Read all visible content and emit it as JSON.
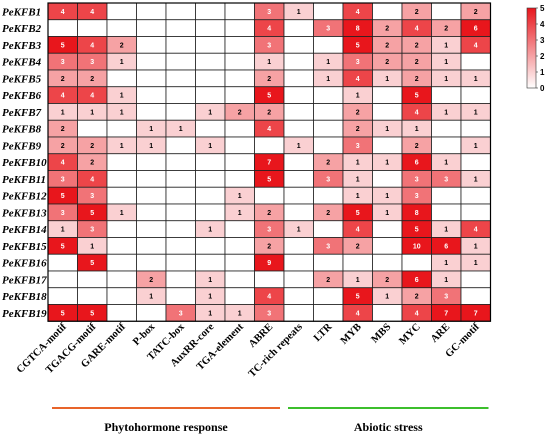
{
  "chart_data": {
    "type": "heatmap",
    "rows": [
      "PeKFB1",
      "PeKFB2",
      "PeKFB3",
      "PeKFB4",
      "PeKFB5",
      "PeKFB6",
      "PeKFB7",
      "PeKFB8",
      "PeKFB9",
      "PeKFB10",
      "PeKFB11",
      "PeKFB12",
      "PeKFB13",
      "PeKFB14",
      "PeKFB15",
      "PeKFB16",
      "PeKFB17",
      "PeKFB18",
      "PeKFB19"
    ],
    "columns": [
      "CGTCA-motif",
      "TGACG-motif",
      "GARE-motif",
      "P-box",
      "TATC-box",
      "AuxRR-core",
      "TGA-element",
      "ABRE",
      "TC-rich repeats",
      "LTR",
      "MYB",
      "MBS",
      "MYC",
      "ARE",
      "GC-motif"
    ],
    "values": [
      [
        4,
        4,
        null,
        null,
        null,
        null,
        null,
        3,
        1,
        null,
        4,
        null,
        2,
        null,
        2
      ],
      [
        null,
        null,
        null,
        null,
        null,
        null,
        null,
        4,
        null,
        3,
        8,
        2,
        4,
        2,
        6
      ],
      [
        5,
        4,
        2,
        null,
        null,
        null,
        null,
        3,
        null,
        null,
        5,
        2,
        2,
        1,
        4
      ],
      [
        3,
        3,
        1,
        null,
        null,
        null,
        null,
        1,
        null,
        1,
        3,
        2,
        2,
        1,
        null
      ],
      [
        2,
        2,
        null,
        null,
        null,
        null,
        null,
        2,
        null,
        1,
        4,
        1,
        2,
        1,
        1
      ],
      [
        4,
        4,
        1,
        null,
        null,
        null,
        null,
        5,
        null,
        null,
        1,
        null,
        5,
        null,
        null
      ],
      [
        1,
        1,
        1,
        null,
        null,
        1,
        2,
        2,
        null,
        null,
        2,
        null,
        4,
        1,
        1
      ],
      [
        2,
        null,
        null,
        1,
        1,
        null,
        null,
        4,
        null,
        null,
        2,
        1,
        1,
        null,
        null
      ],
      [
        2,
        2,
        1,
        1,
        null,
        1,
        null,
        null,
        1,
        null,
        3,
        null,
        2,
        null,
        1
      ],
      [
        4,
        2,
        null,
        null,
        null,
        null,
        null,
        7,
        null,
        2,
        1,
        1,
        6,
        1,
        null
      ],
      [
        3,
        4,
        null,
        null,
        null,
        null,
        null,
        5,
        null,
        3,
        1,
        null,
        3,
        3,
        1
      ],
      [
        5,
        3,
        null,
        null,
        null,
        null,
        1,
        null,
        null,
        null,
        1,
        1,
        3,
        null,
        null
      ],
      [
        3,
        5,
        1,
        null,
        null,
        null,
        1,
        2,
        null,
        2,
        5,
        1,
        8,
        null,
        null
      ],
      [
        1,
        3,
        null,
        null,
        null,
        1,
        null,
        3,
        1,
        null,
        4,
        null,
        5,
        1,
        4
      ],
      [
        5,
        1,
        null,
        null,
        null,
        null,
        null,
        2,
        null,
        3,
        2,
        null,
        10,
        6,
        1
      ],
      [
        null,
        5,
        null,
        null,
        null,
        null,
        null,
        9,
        null,
        null,
        null,
        null,
        null,
        1,
        1
      ],
      [
        null,
        null,
        null,
        2,
        null,
        1,
        null,
        null,
        null,
        2,
        1,
        2,
        6,
        1,
        null
      ],
      [
        null,
        null,
        null,
        1,
        null,
        1,
        null,
        4,
        null,
        null,
        5,
        1,
        2,
        3,
        null
      ],
      [
        5,
        5,
        null,
        null,
        3,
        1,
        1,
        3,
        null,
        null,
        4,
        null,
        4,
        7,
        7
      ]
    ],
    "color_scale": {
      "min": 0,
      "max": 5,
      "low_color": "#ffffff",
      "high_color": "#e8161c",
      "ticks": [
        0,
        1,
        2,
        3,
        4,
        5
      ]
    },
    "groups": [
      {
        "label": "Phytohormone response",
        "color": "#e8642a"
      },
      {
        "label": "Abiotic stress",
        "color": "#3cbf2c"
      }
    ]
  }
}
